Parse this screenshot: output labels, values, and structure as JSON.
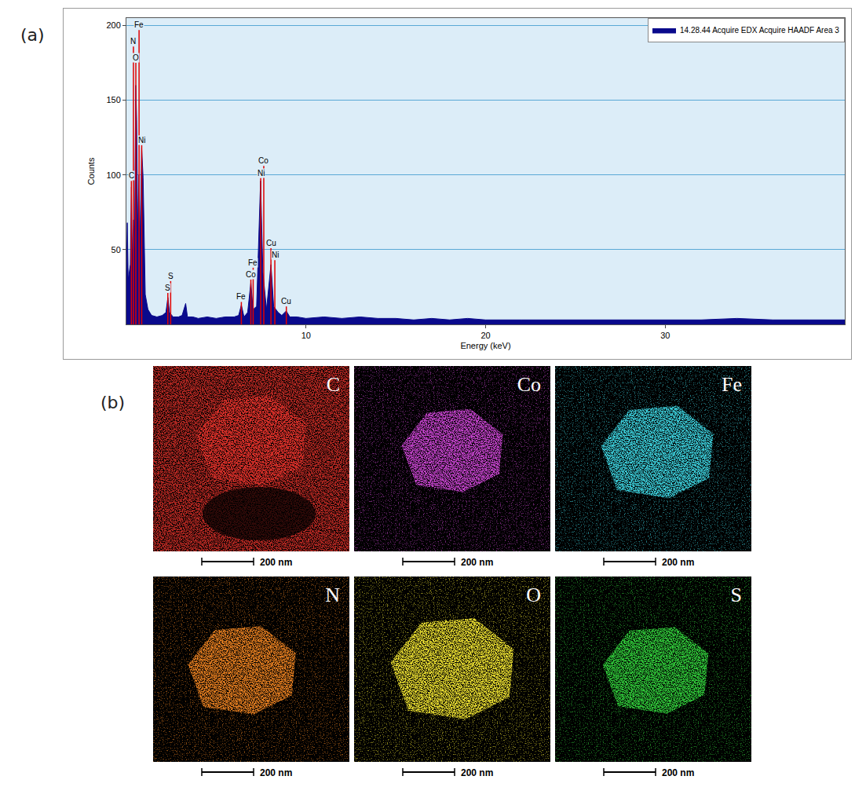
{
  "panel_labels": [
    "(a)",
    "(b)"
  ],
  "chart_data": {
    "type": "area",
    "x_label": "Energy (keV)",
    "y_label": "Counts",
    "xlim": [
      0,
      40
    ],
    "ylim": [
      0,
      205
    ],
    "xticks": [
      10,
      20,
      30
    ],
    "yticks": [
      50,
      100,
      150,
      200
    ],
    "grid": true,
    "legend": "top right",
    "x": [
      0,
      0.05,
      0.1,
      0.15,
      0.22,
      0.28,
      0.33,
      0.39,
      0.45,
      0.52,
      0.57,
      0.63,
      0.7,
      0.76,
      0.85,
      0.93,
      0.98,
      1.05,
      1.2,
      1.4,
      1.7,
      2,
      2.2,
      2.31,
      2.4,
      2.6,
      2.9,
      3.1,
      3.3,
      3.4,
      3.7,
      4,
      4.5,
      5,
      5.5,
      6,
      6.25,
      6.4,
      6.55,
      6.75,
      6.93,
      7.05,
      7.25,
      7.47,
      7.6,
      7.8,
      8.05,
      8.2,
      8.45,
      8.65,
      8.9,
      9.1,
      9.5,
      10,
      11,
      12,
      13,
      14,
      15,
      16,
      17,
      18,
      19,
      20,
      22,
      24,
      26,
      28,
      30,
      32,
      34,
      36,
      38,
      40
    ],
    "series": [
      {
        "name": "14.28.44 Acquire EDX Acquire HAADF Area 3",
        "color": "#0a0a8c",
        "values": [
          35,
          68,
          30,
          35,
          40,
          92,
          40,
          70,
          50,
          160,
          137,
          60,
          100,
          55,
          118,
          98,
          58,
          20,
          10,
          6,
          5,
          6,
          8,
          18,
          8,
          5,
          5,
          6,
          14,
          5,
          5,
          4,
          5,
          4,
          5,
          5,
          6,
          13,
          5,
          8,
          28,
          10,
          12,
          96,
          35,
          10,
          40,
          12,
          8,
          6,
          9,
          5,
          5,
          4,
          5,
          4,
          5,
          4,
          4,
          3,
          4,
          3,
          4,
          3,
          3,
          3,
          3,
          3,
          3,
          3,
          4,
          3,
          3,
          3
        ]
      }
    ],
    "annotations": [
      {
        "x": 0.277,
        "y": 96,
        "text": "C",
        "color": "#e00000"
      },
      {
        "x": 0.392,
        "y": 186,
        "text": "N",
        "color": "#e00000"
      },
      {
        "x": 0.525,
        "y": 175,
        "text": "O",
        "color": "#e00000"
      },
      {
        "x": 0.705,
        "y": 197,
        "text": "Fe",
        "color": "#e00000"
      },
      {
        "x": 0.851,
        "y": 120,
        "text": "Ni",
        "color": "#e00000"
      },
      {
        "x": 2.307,
        "y": 21,
        "text": "S",
        "color": "#e00000"
      },
      {
        "x": 2.464,
        "y": 29,
        "text": "S",
        "color": "#e00000"
      },
      {
        "x": 6.4,
        "y": 15,
        "text": "Fe",
        "color": "#e00000"
      },
      {
        "x": 6.93,
        "y": 30,
        "text": "Co",
        "color": "#e00000"
      },
      {
        "x": 7.058,
        "y": 38,
        "text": "Fe",
        "color": "#e00000"
      },
      {
        "x": 7.478,
        "y": 98,
        "text": "Ni",
        "color": "#e00000"
      },
      {
        "x": 7.649,
        "y": 106,
        "text": "Co",
        "color": "#e00000"
      },
      {
        "x": 8.265,
        "y": 43,
        "text": "Ni",
        "color": "#e00000"
      },
      {
        "x": 8.048,
        "y": 51,
        "text": "Cu",
        "color": "#e00000"
      },
      {
        "x": 8.905,
        "y": 12,
        "text": "Cu",
        "color": "#e00000"
      }
    ]
  },
  "maps": [
    {
      "element": "C",
      "color": "#e0322c",
      "scale_bar": "200 nm"
    },
    {
      "element": "Co",
      "color": "#c844d0",
      "scale_bar": "200 nm"
    },
    {
      "element": "Fe",
      "color": "#3cd0dc",
      "scale_bar": "200 nm"
    },
    {
      "element": "N",
      "color": "#e88020",
      "scale_bar": "200 nm"
    },
    {
      "element": "O",
      "color": "#ece030",
      "scale_bar": "200 nm"
    },
    {
      "element": "S",
      "color": "#30cc3a",
      "scale_bar": "200 nm"
    }
  ]
}
